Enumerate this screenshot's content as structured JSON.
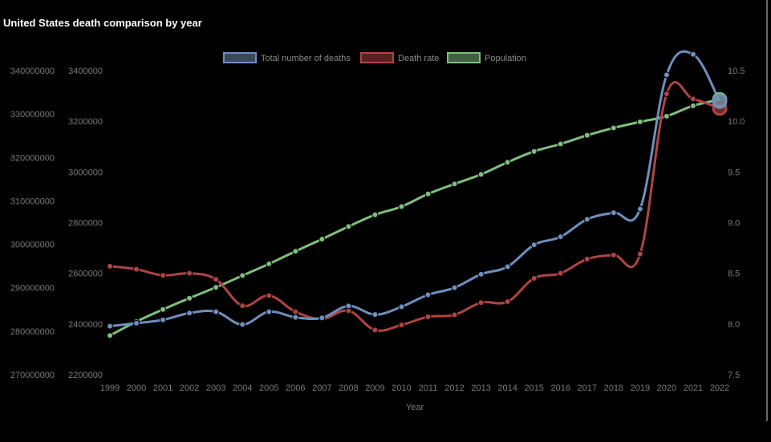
{
  "chart_data": {
    "type": "line",
    "title": "United States death comparison by year",
    "xlabel": "Year",
    "x": [
      1999,
      2000,
      2001,
      2002,
      2003,
      2004,
      2005,
      2006,
      2007,
      2008,
      2009,
      2010,
      2011,
      2012,
      2013,
      2014,
      2015,
      2016,
      2017,
      2018,
      2019,
      2020,
      2021,
      2022
    ],
    "series": [
      {
        "name": "Total number of deaths",
        "color": "#6f8fbf",
        "axis": "y_left_inner",
        "values": [
          2391000,
          2403000,
          2416000,
          2443000,
          2448000,
          2398000,
          2448000,
          2426000,
          2424000,
          2471000,
          2437000,
          2468000,
          2515000,
          2543000,
          2596000,
          2626000,
          2712000,
          2744000,
          2813000,
          2839000,
          2854000,
          3383000,
          3464000,
          3279000
        ]
      },
      {
        "name": "Death rate",
        "color": "#b04444",
        "axis": "y_right",
        "values": [
          8.57,
          8.54,
          8.48,
          8.5,
          8.44,
          8.18,
          8.28,
          8.12,
          8.05,
          8.13,
          7.94,
          7.99,
          8.07,
          8.09,
          8.21,
          8.22,
          8.45,
          8.5,
          8.64,
          8.68,
          8.69,
          10.27,
          10.22,
          10.13
        ]
      },
      {
        "name": "Population",
        "color": "#7fbf7f",
        "axis": "y_left_outer",
        "values": [
          279000000,
          282200000,
          285000000,
          287600000,
          290100000,
          292800000,
          295500000,
          298400000,
          301200000,
          304100000,
          306800000,
          308700000,
          311600000,
          313900000,
          316100000,
          318900000,
          321400000,
          323100000,
          325100000,
          326800000,
          328200000,
          329500000,
          331900000,
          333300000
        ]
      }
    ],
    "y_left_outer": {
      "ticks": [
        "340000000",
        "330000000",
        "320000000",
        "310000000",
        "300000000",
        "290000000",
        "280000000",
        "270000000"
      ],
      "range": [
        270000000,
        340000000
      ]
    },
    "y_left_inner": {
      "ticks": [
        "3400000",
        "3200000",
        "3000000",
        "2800000",
        "2600000",
        "2400000",
        "2200000"
      ],
      "range": [
        2200000,
        3400000
      ]
    },
    "y_right": {
      "ticks": [
        "10.5",
        "10.0",
        "9.5",
        "9.0",
        "8.5",
        "8.0",
        "7.5"
      ],
      "range": [
        7.5,
        10.5
      ]
    },
    "legend_position": "top-center",
    "grid": false
  }
}
